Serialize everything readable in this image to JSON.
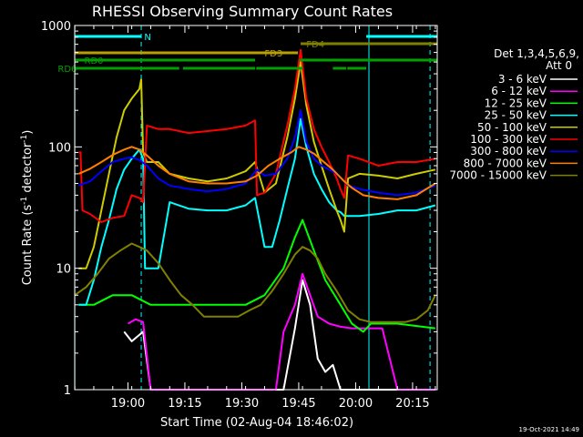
{
  "chart_data": {
    "type": "line",
    "title": "RHESSI Observing Summary Count Rates",
    "xlabel": "Start Time (02-Aug-04 18:46:02)",
    "ylabel_parts": [
      "Count Rate (s",
      "-1",
      " detector",
      "-1",
      ")"
    ],
    "y_scale": "log",
    "ylim": [
      1,
      1000
    ],
    "y_ticks": [
      {
        "v": 1,
        "label": "1"
      },
      {
        "v": 10,
        "label": "10"
      },
      {
        "v": 100,
        "label": "100"
      },
      {
        "v": 1000,
        "label": "1000"
      }
    ],
    "x_range_min": [
      -0.03,
      95.5
    ],
    "x_ticks": [
      {
        "m": 14,
        "label": "19:00"
      },
      {
        "m": 29,
        "label": "19:15"
      },
      {
        "m": 44,
        "label": "19:30"
      },
      {
        "m": 59,
        "label": "19:45"
      },
      {
        "m": 74,
        "label": "20:00"
      },
      {
        "m": 89,
        "label": "20:15"
      }
    ],
    "vlines_min": [
      17.5,
      93.6
    ],
    "cyan_vlines_min": [
      0,
      77.5
    ],
    "detectors": "Det 1,3,4,5,6,9,",
    "attenuator": "Att 0",
    "timestamp": "19-Oct-2021 14:49",
    "flags": [
      {
        "label": "N",
        "color": "#00ffff",
        "segments": [
          [
            0,
            17.5
          ],
          [
            76.8,
            95.5
          ]
        ],
        "level": 0,
        "label_at": 18.3
      },
      {
        "label": "FD3",
        "color": "#b8a000",
        "segments": [
          [
            0,
            58.8
          ]
        ],
        "level": 1,
        "label_at": 50
      },
      {
        "label": "FD4",
        "color": "#808000",
        "segments": [
          [
            59.5,
            95.5
          ]
        ],
        "level": 2,
        "label_at": 61
      },
      {
        "label": "RD0",
        "color": "#00a000",
        "segments": [
          [
            0,
            47.5
          ],
          [
            59.2,
            95.5
          ]
        ],
        "level": 3,
        "label_at": 2.5
      },
      {
        "label": "RD6",
        "color": "#00a000",
        "segments": [
          [
            0,
            27.5
          ],
          [
            28.5,
            47.5
          ],
          [
            47.8,
            60
          ],
          [
            68,
            71.5
          ],
          [
            71.8,
            76.8
          ]
        ],
        "level": 4,
        "label_at": -4.5
      }
    ],
    "series": [
      {
        "name": "3 - 6 keV",
        "color": "#ffffff",
        "x": [
          13,
          15,
          18,
          20,
          55,
          58,
          60,
          62,
          64,
          66,
          68,
          70,
          74,
          80,
          95
        ],
        "y": [
          3,
          2.5,
          3,
          1,
          1,
          3.2,
          8,
          5,
          1.8,
          1.4,
          1.6,
          1,
          1,
          1,
          1
        ]
      },
      {
        "name": "6 - 12 keV",
        "color": "#ff00ff",
        "x": [
          14,
          16,
          18,
          20,
          53,
          55,
          58,
          60,
          62,
          64,
          67,
          70,
          73,
          81,
          85,
          95
        ],
        "y": [
          3.5,
          3.8,
          3.6,
          1,
          1,
          3.0,
          5,
          9,
          6,
          4,
          3.5,
          3.3,
          3.2,
          3.2,
          1,
          1
        ]
      },
      {
        "name": "12 - 25 keV",
        "color": "#00ff00",
        "x": [
          1,
          5,
          10,
          15,
          20,
          30,
          45,
          50,
          55,
          58,
          60,
          63,
          66,
          70,
          73,
          76,
          78,
          85,
          95
        ],
        "y": [
          5,
          5,
          6,
          6,
          5,
          5,
          5,
          6,
          10,
          18,
          25,
          14,
          8,
          5,
          3.5,
          3.0,
          3.5,
          3.5,
          3.2
        ]
      },
      {
        "name": "25 - 50 keV",
        "color": "#00ffff",
        "x": [
          1,
          3,
          5,
          7,
          9,
          11,
          13,
          15,
          17,
          18,
          18.5,
          19,
          22,
          25,
          30,
          35,
          40,
          45,
          47.5,
          50,
          52,
          54,
          56,
          58,
          59.5,
          61,
          63,
          65,
          67,
          69,
          70,
          71,
          72,
          75,
          80,
          85,
          90,
          95
        ],
        "y": [
          5,
          5,
          8,
          15,
          25,
          45,
          65,
          80,
          95,
          80,
          10,
          10,
          10,
          35,
          31,
          30,
          30,
          33,
          38,
          15,
          15,
          25,
          45,
          80,
          170,
          100,
          60,
          45,
          35,
          30,
          29,
          27,
          27,
          27,
          28,
          30,
          30,
          33
        ]
      },
      {
        "name": "50 - 100 keV",
        "color": "#cccc00",
        "x": [
          1,
          3,
          5,
          7,
          9,
          11,
          13,
          15,
          17,
          17.5,
          18,
          19,
          22,
          25,
          30,
          35,
          40,
          45,
          47.5,
          50,
          53,
          56,
          58,
          59.5,
          61,
          63,
          65,
          67,
          69,
          70,
          71,
          72,
          75,
          80,
          85,
          90,
          95
        ],
        "y": [
          10,
          10,
          15,
          30,
          60,
          120,
          200,
          250,
          300,
          360,
          90,
          75,
          75,
          60,
          55,
          52,
          55,
          63,
          75,
          42,
          50,
          120,
          250,
          500,
          220,
          110,
          70,
          45,
          30,
          25,
          20,
          55,
          60,
          58,
          55,
          60,
          65
        ]
      },
      {
        "name": "100 - 300 keV",
        "color": "#ff0000",
        "x": [
          1,
          1.5,
          2,
          4,
          7,
          10,
          13,
          15,
          17,
          18,
          19,
          22,
          25,
          30,
          35,
          40,
          45,
          47.5,
          48,
          50,
          53,
          56,
          58,
          59.5,
          61,
          63,
          65,
          67,
          69,
          70,
          71,
          72,
          75,
          80,
          85,
          90,
          95
        ],
        "y": [
          90,
          90,
          30,
          28,
          24,
          26,
          27,
          40,
          38,
          35,
          150,
          140,
          140,
          130,
          135,
          140,
          150,
          165,
          40,
          42,
          60,
          150,
          300,
          630,
          250,
          140,
          100,
          75,
          55,
          45,
          38,
          85,
          80,
          70,
          75,
          75,
          80
        ]
      },
      {
        "name": "300 - 800 keV",
        "color": "#0000ff",
        "x": [
          1,
          4,
          7,
          10,
          13,
          15,
          17,
          19,
          22,
          25,
          30,
          35,
          40,
          45,
          48,
          50,
          53,
          56,
          58,
          59.5,
          61,
          63,
          65,
          67,
          69,
          71,
          72,
          75,
          80,
          85,
          90,
          95
        ],
        "y": [
          48,
          52,
          63,
          75,
          80,
          82,
          78,
          70,
          55,
          48,
          45,
          43,
          45,
          50,
          65,
          58,
          60,
          80,
          120,
          200,
          110,
          80,
          70,
          65,
          60,
          52,
          48,
          45,
          42,
          40,
          42,
          48
        ]
      },
      {
        "name": "800 - 7000 keV",
        "color": "#ff8000",
        "x": [
          1,
          4,
          7,
          10,
          13,
          15,
          17,
          19,
          22,
          25,
          30,
          35,
          40,
          45,
          48,
          51,
          54,
          57,
          59,
          61,
          63,
          65,
          68,
          71,
          73,
          76,
          80,
          85,
          90,
          95
        ],
        "y": [
          60,
          66,
          75,
          86,
          95,
          100,
          95,
          85,
          70,
          60,
          52,
          50,
          50,
          52,
          58,
          70,
          80,
          90,
          100,
          95,
          88,
          78,
          65,
          52,
          46,
          40,
          38,
          37,
          40,
          50
        ]
      },
      {
        "name": "7000 - 15000 keV",
        "color": "#808000",
        "x": [
          0,
          3,
          6,
          9,
          12,
          15,
          17,
          19,
          22,
          25,
          28,
          31,
          34,
          37,
          40,
          43,
          46,
          49,
          52,
          55,
          58,
          60,
          62,
          64,
          66,
          69,
          72,
          75,
          78,
          81,
          84,
          87,
          90,
          93,
          95
        ],
        "y": [
          6,
          7,
          9,
          12,
          14,
          16,
          15,
          14,
          11,
          8,
          6,
          5,
          4,
          4,
          4,
          4,
          4.5,
          5,
          6.5,
          9,
          13,
          15,
          14,
          12,
          9,
          6.5,
          4.5,
          3.8,
          3.6,
          3.6,
          3.6,
          3.6,
          3.8,
          4.5,
          6
        ]
      }
    ]
  }
}
